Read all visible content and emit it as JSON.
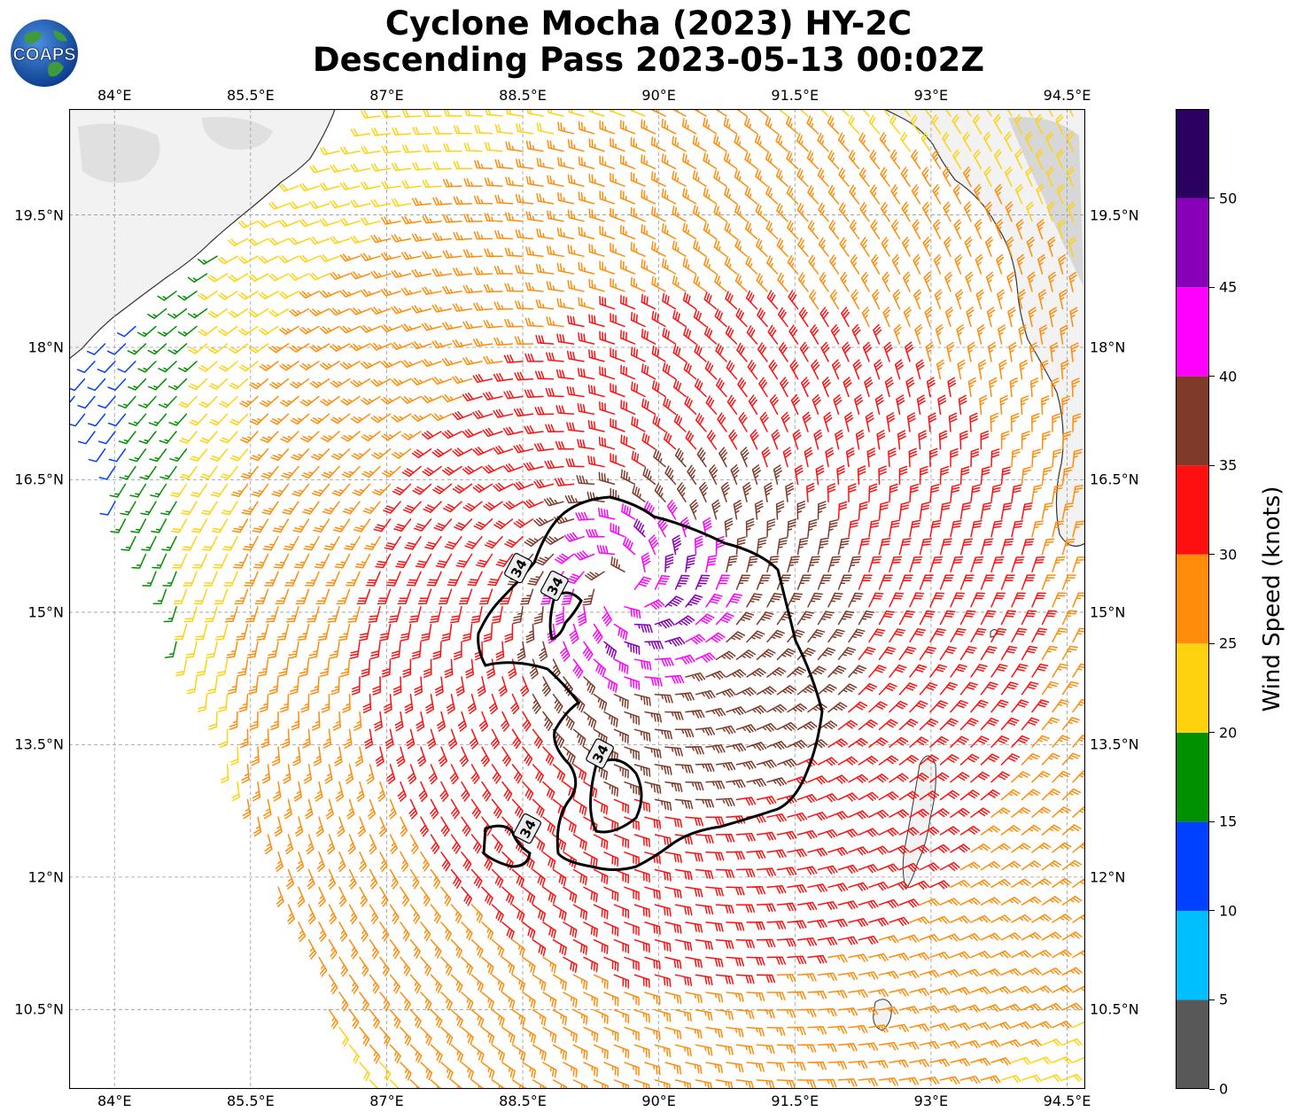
{
  "title": {
    "line1": "Cyclone Mocha (2023) HY-2C",
    "line2": "Descending Pass 2023-05-13 00:02Z"
  },
  "logo": {
    "text": "COAPS",
    "icon": "globe-logo-icon"
  },
  "map": {
    "lon_range": [
      83.5,
      94.7
    ],
    "lat_range": [
      9.6,
      20.7
    ],
    "lon_ticks": [
      {
        "value": 84.0,
        "label": "84°E"
      },
      {
        "value": 85.5,
        "label": "85.5°E"
      },
      {
        "value": 87.0,
        "label": "87°E"
      },
      {
        "value": 88.5,
        "label": "88.5°E"
      },
      {
        "value": 90.0,
        "label": "90°E"
      },
      {
        "value": 91.5,
        "label": "91.5°E"
      },
      {
        "value": 93.0,
        "label": "93°E"
      },
      {
        "value": 94.5,
        "label": "94.5°E"
      }
    ],
    "lat_ticks": [
      {
        "value": 19.5,
        "label": "19.5°N"
      },
      {
        "value": 18.0,
        "label": "18°N"
      },
      {
        "value": 16.5,
        "label": "16.5°N"
      },
      {
        "value": 15.0,
        "label": "15°N"
      },
      {
        "value": 13.5,
        "label": "13.5°N"
      },
      {
        "value": 12.0,
        "label": "12°N"
      },
      {
        "value": 10.5,
        "label": "10.5°N"
      }
    ],
    "grid": true,
    "storm_center": {
      "lon": 89.6,
      "lat": 15.3
    },
    "contour_labels": [
      {
        "text": "34",
        "lon": 88.45,
        "lat": 15.5
      },
      {
        "text": "34",
        "lon": 88.85,
        "lat": 15.3
      },
      {
        "text": "34",
        "lon": 89.35,
        "lat": 13.4
      },
      {
        "text": "34",
        "lon": 88.55,
        "lat": 12.55
      }
    ]
  },
  "colorbar": {
    "title": "Wind Speed (knots)",
    "range": [
      0,
      55
    ],
    "bins": [
      {
        "from": 0,
        "to": 5,
        "color": "#585858"
      },
      {
        "from": 5,
        "to": 10,
        "color": "#00bfff"
      },
      {
        "from": 10,
        "to": 15,
        "color": "#0040ff"
      },
      {
        "from": 15,
        "to": 20,
        "color": "#009000"
      },
      {
        "from": 20,
        "to": 25,
        "color": "#ffd20f"
      },
      {
        "from": 25,
        "to": 30,
        "color": "#ff8c0a"
      },
      {
        "from": 30,
        "to": 35,
        "color": "#ff1010"
      },
      {
        "from": 35,
        "to": 40,
        "color": "#7f3a2a"
      },
      {
        "from": 40,
        "to": 45,
        "color": "#ff00ff"
      },
      {
        "from": 45,
        "to": 50,
        "color": "#8800b8"
      },
      {
        "from": 50,
        "to": 55,
        "color": "#2a0060"
      }
    ],
    "tick_labels": [
      "0",
      "5",
      "10",
      "15",
      "20",
      "25",
      "30",
      "35",
      "40",
      "45",
      "50"
    ]
  }
}
